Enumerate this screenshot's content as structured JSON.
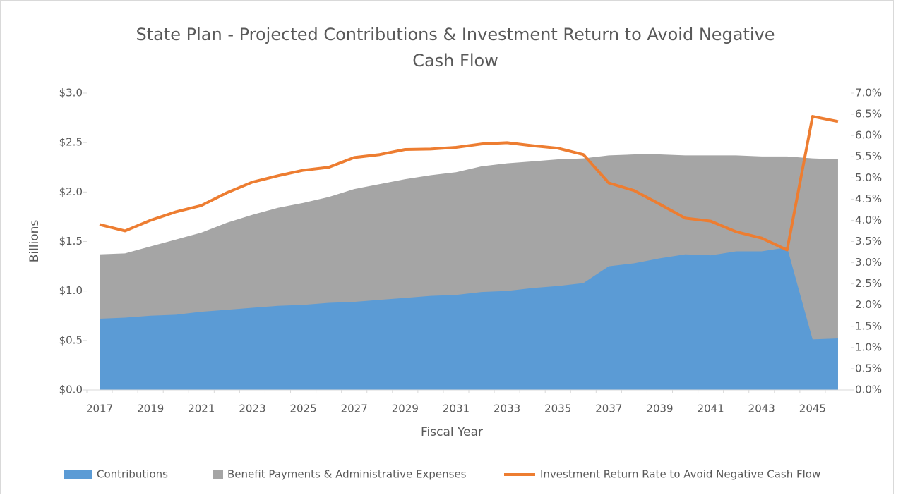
{
  "chart_data": {
    "type": "area-line",
    "title": [
      "State Plan  - Projected Contributions & Investment Return to Avoid Negative",
      "Cash Flow"
    ],
    "x_label": "Fiscal Year",
    "y_label": "Billions",
    "categories": [
      "2017",
      null,
      "2019",
      null,
      "2021",
      null,
      "2023",
      null,
      "2025",
      null,
      "2027",
      null,
      "2029",
      null,
      "2031",
      null,
      "2033",
      null,
      "2035",
      null,
      "2037",
      null,
      "2039",
      null,
      "2041",
      null,
      "2043",
      null,
      "2045",
      null
    ],
    "series": [
      {
        "name": "Contributions",
        "type": "area",
        "color": "#5b9bd5",
        "values": [
          0.72,
          0.73,
          0.75,
          0.76,
          0.79,
          0.81,
          0.83,
          0.85,
          0.86,
          0.88,
          0.89,
          0.91,
          0.93,
          0.95,
          0.96,
          0.99,
          1.0,
          1.03,
          1.05,
          1.08,
          1.25,
          1.28,
          1.33,
          1.37,
          1.36,
          1.4,
          1.4,
          1.44,
          0.51,
          0.52
        ]
      },
      {
        "name": "Benefit Payments & Administrative Expenses",
        "type": "area",
        "color": "#a5a5a5",
        "values": [
          1.37,
          1.38,
          1.45,
          1.52,
          1.59,
          1.69,
          1.77,
          1.84,
          1.89,
          1.95,
          2.03,
          2.08,
          2.13,
          2.17,
          2.2,
          2.26,
          2.29,
          2.31,
          2.33,
          2.34,
          2.37,
          2.38,
          2.38,
          2.37,
          2.37,
          2.37,
          2.36,
          2.36,
          2.34,
          2.33
        ]
      },
      {
        "name": "Investment Return Rate to Avoid Negative Cash Flow",
        "type": "line",
        "axis": "y2",
        "color": "#ed7d31",
        "values": [
          3.9,
          3.75,
          4.0,
          4.2,
          4.35,
          4.65,
          4.9,
          5.05,
          5.18,
          5.25,
          5.48,
          5.55,
          5.67,
          5.68,
          5.72,
          5.8,
          5.83,
          5.76,
          5.7,
          5.55,
          4.88,
          4.7,
          4.38,
          4.05,
          3.98,
          3.73,
          3.58,
          3.3,
          6.45,
          6.33
        ]
      }
    ],
    "ylim": [
      0,
      3
    ],
    "yticks": [
      {
        "value": 0,
        "label": "$0.0"
      },
      {
        "value": 0.5,
        "label": "$0.5"
      },
      {
        "value": 1,
        "label": "$1.0"
      },
      {
        "value": 1.5,
        "label": "$1.5"
      },
      {
        "value": 2,
        "label": "$2.0"
      },
      {
        "value": 2.5,
        "label": "$2.5"
      },
      {
        "value": 3,
        "label": "$3.0"
      }
    ],
    "y2lim": [
      0,
      7
    ],
    "y2ticks": [
      {
        "value": 0,
        "label": "0.0%"
      },
      {
        "value": 0.5,
        "label": "0.5%"
      },
      {
        "value": 1,
        "label": "1.0%"
      },
      {
        "value": 1.5,
        "label": "1.5%"
      },
      {
        "value": 2,
        "label": "2.0%"
      },
      {
        "value": 2.5,
        "label": "2.5%"
      },
      {
        "value": 3,
        "label": "3.0%"
      },
      {
        "value": 3.5,
        "label": "3.5%"
      },
      {
        "value": 4,
        "label": "4.0%"
      },
      {
        "value": 4.5,
        "label": "4.5%"
      },
      {
        "value": 5,
        "label": "5.0%"
      },
      {
        "value": 5.5,
        "label": "5.5%"
      },
      {
        "value": 6,
        "label": "6.0%"
      },
      {
        "value": 6.5,
        "label": "6.5%"
      },
      {
        "value": 7,
        "label": "7.0%"
      }
    ],
    "grid": false,
    "legend": "bottom"
  }
}
